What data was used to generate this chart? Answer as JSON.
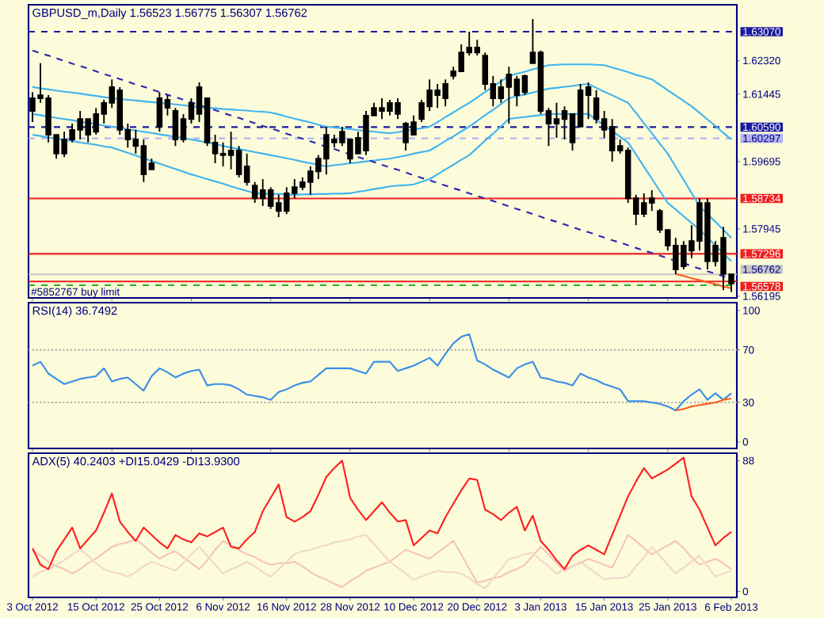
{
  "chart_data": [
    {
      "type": "candlestick",
      "title": "GBPUSD_m,Daily 1.56523 1.56775 1.56307 1.56762",
      "color": "#000000",
      "categories": [
        null,
        null,
        null,
        null,
        null,
        null,
        null,
        null,
        null,
        null,
        null,
        null,
        null,
        null,
        null,
        null,
        null,
        null,
        null,
        null,
        null,
        null,
        null,
        null,
        null,
        null,
        null,
        null,
        null,
        null,
        null,
        null,
        null,
        null,
        null,
        null,
        null,
        null,
        null,
        null,
        null,
        null,
        null,
        null,
        null,
        null,
        null,
        null,
        null,
        null,
        null,
        null,
        null,
        null,
        null,
        null,
        null,
        null,
        null,
        null,
        null,
        null,
        null,
        null,
        null,
        null,
        null,
        null,
        null,
        null,
        null,
        null,
        null,
        null,
        null,
        null,
        null,
        null,
        null,
        null,
        null,
        null,
        null,
        null,
        null,
        null,
        null,
        null,
        null
      ],
      "ohlc": [
        [
          1.6101,
          1.615,
          1.6072,
          1.6134
        ],
        [
          1.6134,
          1.6225,
          1.6122,
          1.6142
        ],
        [
          1.6134,
          1.6142,
          1.6019,
          1.6039
        ],
        [
          1.6039,
          1.6039,
          1.5977,
          1.599
        ],
        [
          1.599,
          1.6047,
          1.5981,
          1.6027
        ],
        [
          1.6027,
          1.6068,
          1.6019,
          1.6052
        ],
        [
          1.6052,
          1.6101,
          1.6027,
          1.608
        ],
        [
          1.608,
          1.608,
          1.6019,
          1.6039
        ],
        [
          1.6047,
          1.6109,
          1.6039,
          1.6093
        ],
        [
          1.6093,
          1.613,
          1.6068,
          1.6122
        ],
        [
          1.6122,
          1.6183,
          1.6109,
          1.6163
        ],
        [
          1.6155,
          1.6163,
          1.6039,
          1.6052
        ],
        [
          1.6052,
          1.6068,
          1.6006,
          1.6027
        ],
        [
          1.6027,
          1.6052,
          1.599,
          1.601
        ],
        [
          1.601,
          1.6027,
          1.5916,
          1.5936
        ],
        [
          1.5949,
          1.5977,
          1.5949,
          1.5965
        ],
        [
          1.606,
          1.615,
          1.6047,
          1.6134
        ],
        [
          1.613,
          1.6142,
          1.6089,
          1.6109
        ],
        [
          1.6101,
          1.6109,
          1.601,
          1.6027
        ],
        [
          1.6027,
          1.6093,
          1.6019,
          1.608
        ],
        [
          1.608,
          1.6134,
          1.6068,
          1.6122
        ],
        [
          1.6093,
          1.6175,
          1.6072,
          1.6163
        ],
        [
          1.6134,
          1.6134,
          1.601,
          1.6019
        ],
        [
          1.6019,
          1.6039,
          1.5965,
          1.599
        ],
        [
          1.599,
          1.6019,
          1.5957,
          1.5986
        ],
        [
          1.5986,
          1.6047,
          1.5949,
          1.5998
        ],
        [
          1.5998,
          1.601,
          1.5928,
          1.5936
        ],
        [
          1.5957,
          1.599,
          1.5907,
          1.5916
        ],
        [
          1.5907,
          1.5916,
          1.5862,
          1.5874
        ],
        [
          1.5874,
          1.5924,
          1.5854,
          1.5895
        ],
        [
          1.5895,
          1.5903,
          1.5846,
          1.5854
        ],
        [
          1.5862,
          1.5883,
          1.5825,
          1.5841
        ],
        [
          1.5841,
          1.5903,
          1.5833,
          1.5887
        ],
        [
          1.5887,
          1.5924,
          1.5874,
          1.5903
        ],
        [
          1.5903,
          1.5928,
          1.5895,
          1.5916
        ],
        [
          1.5916,
          1.5957,
          1.5883,
          1.5944
        ],
        [
          1.5944,
          1.5986,
          1.5924,
          1.5977
        ],
        [
          1.5977,
          1.606,
          1.5936,
          1.6039
        ],
        [
          1.6027,
          1.6039,
          1.6006,
          1.6019
        ],
        [
          1.6019,
          1.606,
          1.601,
          1.6047
        ],
        [
          1.6027,
          1.6027,
          1.5965,
          1.5977
        ],
        [
          1.599,
          1.6047,
          1.599,
          1.6031
        ],
        [
          1.5998,
          1.6101,
          1.5986,
          1.6089
        ],
        [
          1.6089,
          1.6122,
          1.6089,
          1.6109
        ],
        [
          1.6109,
          1.6134,
          1.608,
          1.6101
        ],
        [
          1.6101,
          1.613,
          1.6089,
          1.6122
        ],
        [
          1.6122,
          1.6134,
          1.608,
          1.6093
        ],
        [
          1.6068,
          1.6072,
          1.5998,
          1.6019
        ],
        [
          1.6039,
          1.6089,
          1.6039,
          1.6072
        ],
        [
          1.608,
          1.613,
          1.6072,
          1.6122
        ],
        [
          1.6113,
          1.6183,
          1.6101,
          1.6155
        ],
        [
          1.6155,
          1.6171,
          1.6109,
          1.6142
        ],
        [
          1.6134,
          1.6183,
          1.6113,
          1.6171
        ],
        [
          1.6192,
          1.6216,
          1.6183,
          1.6204
        ],
        [
          1.6204,
          1.6274,
          1.6204,
          1.6253
        ],
        [
          1.6253,
          1.6307,
          1.6245,
          1.6266
        ],
        [
          1.6266,
          1.6286,
          1.6245,
          1.6253
        ],
        [
          1.6245,
          1.6253,
          1.6155,
          1.6171
        ],
        [
          1.6171,
          1.6192,
          1.6113,
          1.6134
        ],
        [
          1.6134,
          1.6183,
          1.6122,
          1.6163
        ],
        [
          1.6163,
          1.6216,
          1.6068,
          1.6196
        ],
        [
          1.6183,
          1.6192,
          1.6113,
          1.6142
        ],
        [
          1.615,
          1.6196,
          1.6142,
          1.6192
        ],
        [
          1.6225,
          1.634,
          1.6225,
          1.6253
        ],
        [
          1.6253,
          1.6258,
          1.6093,
          1.6101
        ],
        [
          1.6101,
          1.6109,
          1.601,
          1.6068
        ],
        [
          1.6068,
          1.6122,
          1.6031,
          1.608
        ],
        [
          1.608,
          1.6113,
          1.6027,
          1.6101
        ],
        [
          1.6093,
          1.6093,
          1.5998,
          1.6019
        ],
        [
          1.606,
          1.6171,
          1.606,
          1.6155
        ],
        [
          1.6163,
          1.6175,
          1.608,
          1.6142
        ],
        [
          1.6134,
          1.6155,
          1.6068,
          1.608
        ],
        [
          1.608,
          1.6101,
          1.6031,
          1.6052
        ],
        [
          1.606,
          1.608,
          1.5969,
          1.5998
        ],
        [
          1.5998,
          1.6027,
          1.599,
          1.601
        ],
        [
          1.5998,
          1.6006,
          1.5862,
          1.5874
        ],
        [
          1.5874,
          1.5883,
          1.5804,
          1.5833
        ],
        [
          1.5833,
          1.5887,
          1.5825,
          1.5862
        ],
        [
          1.5862,
          1.5895,
          1.5841,
          1.5874
        ],
        [
          1.5841,
          1.5846,
          1.5784,
          1.5792
        ],
        [
          1.5792,
          1.5792,
          1.5738,
          1.5751
        ],
        [
          1.5751,
          1.5771,
          1.5677,
          1.5689
        ],
        [
          1.5697,
          1.5763,
          1.5689,
          1.5751
        ],
        [
          1.5738,
          1.5804,
          1.5718,
          1.5763
        ],
        [
          1.5763,
          1.5874,
          1.5738,
          1.5862
        ],
        [
          1.5862,
          1.5874,
          1.5689,
          1.571
        ],
        [
          1.571,
          1.5763,
          1.5697,
          1.5751
        ],
        [
          1.5771,
          1.58,
          1.5635,
          1.5677
        ],
        [
          1.56523,
          1.56775,
          1.56307,
          1.56762
        ]
      ],
      "series": [
        {
          "type": "line",
          "color": "#40b4f0",
          "values": [
            1.6163,
            1.616,
            1.6157,
            1.6154,
            1.6151,
            1.6149,
            1.6146,
            1.6143,
            1.614,
            1.6137,
            1.6134,
            1.6132,
            1.613,
            1.6128,
            1.6126,
            1.6124,
            1.6122,
            1.612,
            1.6118,
            1.6116,
            1.6113,
            1.6111,
            1.6109,
            1.6108,
            1.6106,
            1.6105,
            1.6103,
            1.6102,
            1.61,
            1.6099,
            1.6097,
            1.6092,
            1.6086,
            1.6081,
            1.6076,
            1.6071,
            1.6065,
            1.606,
            1.6058,
            1.6056,
            1.6054,
            1.6051,
            1.6049,
            1.6047,
            1.6045,
            1.6043,
            1.6046,
            1.6049,
            1.6053,
            1.6056,
            1.606,
            1.6072,
            1.6085,
            1.6097,
            1.611,
            1.6122,
            1.6136,
            1.615,
            1.6164,
            1.6178,
            1.6192,
            1.6198,
            1.6203,
            1.6209,
            1.6214,
            1.622,
            1.6221,
            1.6222,
            1.6222,
            1.6222,
            1.6222,
            1.6221,
            1.622,
            1.6214,
            1.6208,
            1.6202,
            1.6195,
            1.6189,
            1.6183,
            1.6169,
            1.6155,
            1.6141,
            1.6127,
            1.6113,
            1.6096,
            1.6079,
            1.6062,
            1.6044,
            1.6027
          ]
        },
        {
          "type": "line",
          "color": "#40b4f0",
          "values": [
            1.6093,
            1.609,
            1.6086,
            1.6083,
            1.608,
            1.6077,
            1.6073,
            1.607,
            1.6067,
            1.6063,
            1.606,
            1.6057,
            1.6053,
            1.605,
            1.6047,
            1.6044,
            1.604,
            1.6037,
            1.6034,
            1.603,
            1.6027,
            1.6023,
            1.6019,
            1.6015,
            1.601,
            1.6006,
            1.6002,
            1.5998,
            1.5994,
            1.599,
            1.5986,
            1.5982,
            1.5978,
            1.5974,
            1.5969,
            1.5965,
            1.5961,
            1.5957,
            1.596,
            1.5962,
            1.5965,
            1.5967,
            1.597,
            1.5972,
            1.5975,
            1.5977,
            1.5981,
            1.5985,
            1.599,
            1.5994,
            1.5998,
            1.601,
            1.6023,
            1.6035,
            1.6048,
            1.606,
            1.6075,
            1.609,
            1.6104,
            1.6119,
            1.6134,
            1.6139,
            1.6144,
            1.6149,
            1.6154,
            1.6159,
            1.6161,
            1.6164,
            1.6166,
            1.6169,
            1.6171,
            1.6161,
            1.6151,
            1.6142,
            1.6132,
            1.6122,
            1.6096,
            1.6069,
            1.6043,
            1.6016,
            1.599,
            1.5956,
            1.5922,
            1.5888,
            1.5854,
            1.5833,
            1.5813,
            1.5792,
            1.5771
          ]
        },
        {
          "type": "line",
          "color": "#40b4f0",
          "values": [
            1.6039,
            1.6036,
            1.6032,
            1.6029,
            1.6026,
            1.6023,
            1.6019,
            1.6016,
            1.6013,
            1.6009,
            1.6006,
            1.5999,
            1.5992,
            1.5985,
            1.5978,
            1.5971,
            1.5964,
            1.5957,
            1.595,
            1.5943,
            1.5936,
            1.593,
            1.5924,
            1.5918,
            1.5912,
            1.5905,
            1.5899,
            1.5893,
            1.5887,
            1.5886,
            1.5885,
            1.5885,
            1.5884,
            1.5883,
            1.5884,
            1.5884,
            1.5885,
            1.5885,
            1.5886,
            1.5886,
            1.5887,
            1.5891,
            1.5894,
            1.5898,
            1.5901,
            1.5905,
            1.5907,
            1.5908,
            1.591,
            1.5917,
            1.5924,
            1.5936,
            1.5949,
            1.5961,
            1.5974,
            1.5986,
            1.6005,
            1.6024,
            1.6042,
            1.6061,
            1.608,
            1.6083,
            1.6085,
            1.6088,
            1.609,
            1.6093,
            1.6093,
            1.6093,
            1.6093,
            1.6093,
            1.6093,
            1.6078,
            1.6063,
            1.6049,
            1.6034,
            1.6019,
            1.5988,
            1.5956,
            1.5925,
            1.5893,
            1.5862,
            1.5845,
            1.5827,
            1.581,
            1.5792,
            1.5772,
            1.5751,
            1.5731,
            1.571
          ]
        },
        {
          "type": "line",
          "color": "#2a2ab0",
          "line_style": "dashed",
          "values": [
            1.6258,
            1.6251,
            1.6245,
            1.6238,
            1.6231,
            1.6224,
            1.6218,
            1.6211,
            1.6204,
            1.6197,
            1.6191,
            1.6184,
            1.6177,
            1.617,
            1.6164,
            1.6157,
            1.615,
            1.6143,
            1.6137,
            1.613,
            1.6123,
            1.6116,
            1.611,
            1.6103,
            1.6096,
            1.6089,
            1.6083,
            1.6076,
            1.6069,
            1.6062,
            1.6056,
            1.6049,
            1.6042,
            1.6035,
            1.6029,
            1.6022,
            1.6015,
            1.6008,
            1.6002,
            1.5995,
            1.5988,
            1.5981,
            1.5975,
            1.5968,
            1.5961,
            1.5954,
            1.5948,
            1.5941,
            1.5934,
            1.5927,
            1.5921,
            1.5914,
            1.5907,
            1.59,
            1.5894,
            1.5887,
            1.588,
            1.5873,
            1.5867,
            1.586,
            1.5853,
            1.5846,
            1.584,
            1.5833,
            1.5826,
            1.5819,
            1.5813,
            1.5806,
            1.5799,
            1.5792,
            1.5786,
            1.5779,
            1.5772,
            1.5765,
            1.5759,
            1.5752,
            1.5745,
            1.5738,
            1.5732,
            1.5725,
            1.5718,
            1.5711,
            1.5705,
            1.5698,
            1.5691,
            1.5684,
            1.5678,
            1.5671,
            1.5664
          ]
        },
        {
          "type": "line",
          "color": "#ff5a1e",
          "values": [
            null,
            null,
            null,
            null,
            null,
            null,
            null,
            null,
            null,
            null,
            null,
            null,
            null,
            null,
            null,
            null,
            null,
            null,
            null,
            null,
            null,
            null,
            null,
            null,
            null,
            null,
            null,
            null,
            null,
            null,
            null,
            null,
            null,
            null,
            null,
            null,
            null,
            null,
            null,
            null,
            null,
            null,
            null,
            null,
            null,
            null,
            null,
            null,
            null,
            null,
            null,
            null,
            null,
            null,
            null,
            null,
            null,
            null,
            null,
            null,
            null,
            null,
            null,
            null,
            null,
            null,
            null,
            null,
            null,
            null,
            null,
            null,
            null,
            null,
            null,
            null,
            null,
            null,
            null,
            null,
            null,
            1.5677,
            1.5672,
            1.5666,
            1.5661,
            1.5656,
            1.5651,
            1.5645,
            1.564
          ]
        }
      ],
      "ylim": [
        1.5615,
        1.6377
      ],
      "yticks": [
        {
          "value": 1.6232,
          "label": "1.62320"
        },
        {
          "value": 1.61445,
          "label": "1.61445"
        },
        {
          "value": 1.59695,
          "label": "1.59695"
        },
        {
          "value": 1.57945,
          "label": "1.57945"
        },
        {
          "value": 1.56195,
          "label": "1.56195"
        }
      ],
      "ref_lines": [
        {
          "axis": "y",
          "value": 1.6307,
          "label": "1.63070",
          "color": "#1a1a9c",
          "line_style": "dashed"
        },
        {
          "axis": "y",
          "value": 1.6059,
          "label": "1.60590",
          "color": "#1a1a9c",
          "line_style": "dashed"
        },
        {
          "axis": "y",
          "value": 1.60297,
          "label": "1.60297",
          "color": "#b4b4f0",
          "line_style": "dashed"
        },
        {
          "axis": "y",
          "value": 1.58734,
          "label": "1.58734",
          "color": "#ee2020",
          "line_style": "solid"
        },
        {
          "axis": "y",
          "value": 1.57296,
          "label": "1.57296",
          "color": "#ee2020",
          "line_style": "solid"
        },
        {
          "axis": "y",
          "value": 1.56762,
          "label": "1.56762",
          "color": "#c8c8c8",
          "line_style": "solid"
        },
        {
          "axis": "y",
          "value": 1.56578,
          "label": "1.56578",
          "color": "#ee2020",
          "line_style": "solid"
        },
        {
          "axis": "y",
          "value": 1.5648,
          "label": "#5852767 buy limit",
          "color": "#20b020",
          "line_style": "dashed"
        }
      ]
    },
    {
      "type": "line",
      "title": "RSI(14) 36.7492",
      "categories": [
        null,
        null,
        null,
        null,
        null,
        null,
        null,
        null,
        null,
        null,
        null,
        null,
        null,
        null,
        null,
        null,
        null,
        null,
        null,
        null,
        null,
        null,
        null,
        null,
        null,
        null,
        null,
        null,
        null,
        null,
        null,
        null,
        null,
        null,
        null,
        null,
        null,
        null,
        null,
        null,
        null,
        null,
        null,
        null,
        null,
        null,
        null,
        null,
        null,
        null,
        null,
        null,
        null,
        null,
        null,
        null,
        null,
        null,
        null,
        null,
        null,
        null,
        null,
        null,
        null,
        null,
        null,
        null,
        null,
        null,
        null,
        null,
        null,
        null,
        null,
        null,
        null,
        null,
        null,
        null,
        null,
        null,
        null,
        null,
        null,
        null,
        null,
        null,
        null
      ],
      "series": [
        {
          "color": "#3a8ee8",
          "values": [
            58,
            61,
            52,
            48,
            44,
            46,
            48,
            49,
            50,
            56,
            46,
            48,
            49,
            44,
            39,
            50,
            56,
            53,
            49,
            52,
            54,
            55,
            43,
            44,
            44,
            43,
            40,
            36,
            35,
            34,
            32,
            38,
            40,
            43,
            45,
            46,
            51,
            56,
            56,
            56,
            56,
            54,
            52,
            61,
            61,
            61,
            54,
            56,
            58,
            61,
            64,
            58,
            67,
            75,
            80,
            82,
            62,
            59,
            55,
            52,
            49,
            56,
            59,
            61,
            49,
            48,
            46,
            45,
            43,
            52,
            49,
            47,
            44,
            42,
            40,
            31,
            31,
            31,
            30,
            29,
            27,
            24,
            31,
            36,
            40,
            32,
            37,
            32,
            37
          ]
        },
        {
          "color": "#ff5a1e",
          "values": [
            null,
            null,
            null,
            null,
            null,
            null,
            null,
            null,
            null,
            null,
            null,
            null,
            null,
            null,
            null,
            null,
            null,
            null,
            null,
            null,
            null,
            null,
            null,
            null,
            null,
            null,
            null,
            null,
            null,
            null,
            null,
            null,
            null,
            null,
            null,
            null,
            null,
            null,
            null,
            null,
            null,
            null,
            null,
            null,
            null,
            null,
            null,
            null,
            null,
            null,
            null,
            null,
            null,
            null,
            null,
            null,
            null,
            null,
            null,
            null,
            null,
            null,
            null,
            null,
            null,
            null,
            null,
            null,
            null,
            null,
            null,
            null,
            null,
            null,
            null,
            null,
            null,
            null,
            null,
            null,
            null,
            24,
            25,
            27,
            28,
            29,
            30,
            32,
            33
          ]
        }
      ],
      "ylim": [
        -5,
        106
      ],
      "yticks": [
        0,
        30,
        70,
        100
      ],
      "ref_lines": [
        {
          "axis": "y",
          "value": 30,
          "color": "#b0b0b0",
          "line_style": "dotted"
        },
        {
          "axis": "y",
          "value": 70,
          "color": "#b0b0b0",
          "line_style": "dotted"
        }
      ]
    },
    {
      "type": "line",
      "title": "ADX(5) 40.2403 +DI15.0429 -DI13.9300",
      "categories": [
        "3 Oct 2012",
        null,
        null,
        null,
        null,
        null,
        null,
        null,
        "15 Oct 2012",
        null,
        null,
        null,
        null,
        null,
        null,
        null,
        "25 Oct 2012",
        null,
        null,
        null,
        null,
        null,
        null,
        null,
        "6 Nov 2012",
        null,
        null,
        null,
        null,
        null,
        null,
        null,
        "16 Nov 2012",
        null,
        null,
        null,
        null,
        null,
        null,
        null,
        "28 Nov 2012",
        null,
        null,
        null,
        null,
        null,
        null,
        null,
        "10 Dec 2012",
        null,
        null,
        null,
        null,
        null,
        null,
        null,
        "20 Dec 2012",
        null,
        null,
        null,
        null,
        null,
        null,
        null,
        "3 Jan 2013",
        null,
        null,
        null,
        null,
        null,
        null,
        null,
        "15 Jan 2013",
        null,
        null,
        null,
        null,
        null,
        null,
        null,
        "25 Jan 2013",
        null,
        null,
        null,
        null,
        null,
        null,
        null,
        "6 Feb 2013"
      ],
      "series": [
        {
          "color": "#f6c4bc",
          "values": [
            28,
            24,
            20,
            17,
            15,
            12,
            15,
            19,
            22,
            26,
            30,
            32,
            33,
            35,
            31,
            26,
            22,
            25,
            27,
            23,
            19,
            15,
            21,
            28,
            34,
            31,
            28,
            25,
            23,
            20,
            18,
            19,
            19,
            20,
            17,
            13,
            10,
            8,
            5,
            3,
            7,
            10,
            14,
            16,
            18,
            20,
            24,
            28,
            26,
            24,
            22,
            26,
            30,
            34,
            25,
            15,
            6,
            7,
            9,
            10,
            13,
            15,
            18,
            24,
            30,
            25,
            19,
            14,
            17,
            19,
            22,
            20,
            18,
            16,
            27,
            38,
            34,
            29,
            25,
            28,
            31,
            34,
            29,
            23,
            18,
            20,
            22,
            19,
            15
          ]
        },
        {
          "color": "#f2d6cc",
          "values": [
            10,
            13,
            15,
            18,
            21,
            25,
            28,
            24,
            19,
            15,
            13,
            12,
            10,
            13,
            17,
            20,
            18,
            16,
            14,
            19,
            25,
            30,
            24,
            18,
            12,
            15,
            17,
            20,
            17,
            13,
            10,
            15,
            20,
            25,
            27,
            28,
            30,
            31,
            33,
            34,
            35,
            37,
            38,
            32,
            26,
            20,
            16,
            12,
            8,
            10,
            12,
            14,
            13,
            13,
            12,
            9,
            5,
            2,
            9,
            15,
            22,
            23,
            25,
            26,
            21,
            17,
            12,
            15,
            17,
            20,
            16,
            12,
            8,
            9,
            9,
            10,
            17,
            23,
            30,
            24,
            18,
            12,
            16,
            20,
            24,
            17,
            10,
            12,
            14
          ]
        },
        {
          "color": "#ff2020",
          "values": [
            29,
            18,
            15,
            27,
            35,
            43,
            29,
            35,
            41,
            53,
            66,
            47,
            40,
            34,
            43,
            38,
            33,
            29,
            38,
            35,
            33,
            39,
            37,
            40,
            43,
            30,
            29,
            35,
            40,
            54,
            63,
            72,
            50,
            47,
            50,
            54,
            65,
            77,
            83,
            88,
            63,
            55,
            48,
            54,
            60,
            53,
            47,
            48,
            31,
            36,
            41,
            39,
            50,
            59,
            68,
            76,
            75,
            55,
            52,
            48,
            53,
            57,
            41,
            51,
            34,
            28,
            21,
            15,
            24,
            28,
            31,
            28,
            25,
            38,
            51,
            64,
            74,
            83,
            76,
            79,
            82,
            86,
            90,
            64,
            55,
            43,
            31,
            36,
            40
          ]
        }
      ],
      "ylim": [
        -4,
        93
      ],
      "yticks": [
        0,
        88
      ]
    }
  ]
}
